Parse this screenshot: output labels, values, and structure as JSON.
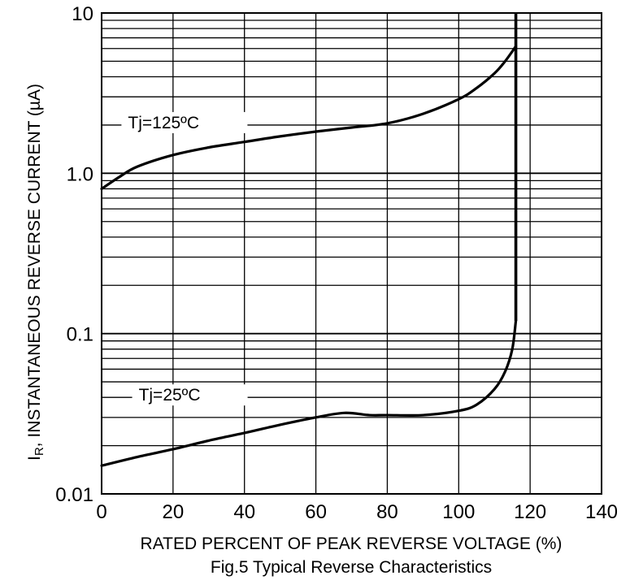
{
  "chart_data": {
    "type": "line",
    "title": "Fig.5 Typical Reverse Characteristics",
    "xlabel": "RATED PERCENT OF PEAK REVERSE VOLTAGE (%)",
    "ylabel": "I_R, INSTANTANEOUS REVERSE CURRENT (µA)",
    "ylabel_prefix": "I",
    "ylabel_subscript": "R",
    "ylabel_rest": ", INSTANTANEOUS REVERSE CURRENT (µA)",
    "xlim": [
      0,
      140
    ],
    "ylim": [
      0.01,
      10
    ],
    "yscale": "log",
    "grid": true,
    "x_ticks": [
      0,
      20,
      40,
      60,
      80,
      100,
      120,
      140
    ],
    "x_tick_labels": [
      "0",
      "20",
      "40",
      "60",
      "80",
      "100",
      "120",
      "140"
    ],
    "y_ticks": [
      0.01,
      0.1,
      1.0,
      10
    ],
    "y_tick_labels": [
      "0.01",
      "0.1",
      "1.0",
      "10"
    ],
    "series": [
      {
        "name": "Tj=125ºC",
        "x": [
          0,
          5,
          10,
          20,
          30,
          40,
          50,
          60,
          70,
          80,
          90,
          100,
          105,
          110,
          113,
          116
        ],
        "y": [
          0.8,
          0.95,
          1.1,
          1.3,
          1.45,
          1.57,
          1.7,
          1.82,
          1.93,
          2.05,
          2.35,
          2.9,
          3.4,
          4.2,
          5.0,
          6.2
        ]
      },
      {
        "name": "Tj=25ºC",
        "x": [
          0,
          10,
          20,
          30,
          40,
          50,
          60,
          68,
          75,
          80,
          90,
          100,
          105,
          110,
          113,
          115,
          116
        ],
        "y": [
          0.015,
          0.017,
          0.019,
          0.0215,
          0.024,
          0.027,
          0.03,
          0.032,
          0.031,
          0.031,
          0.031,
          0.033,
          0.036,
          0.045,
          0.058,
          0.08,
          0.12
        ]
      }
    ],
    "breakdown_x": 116
  }
}
